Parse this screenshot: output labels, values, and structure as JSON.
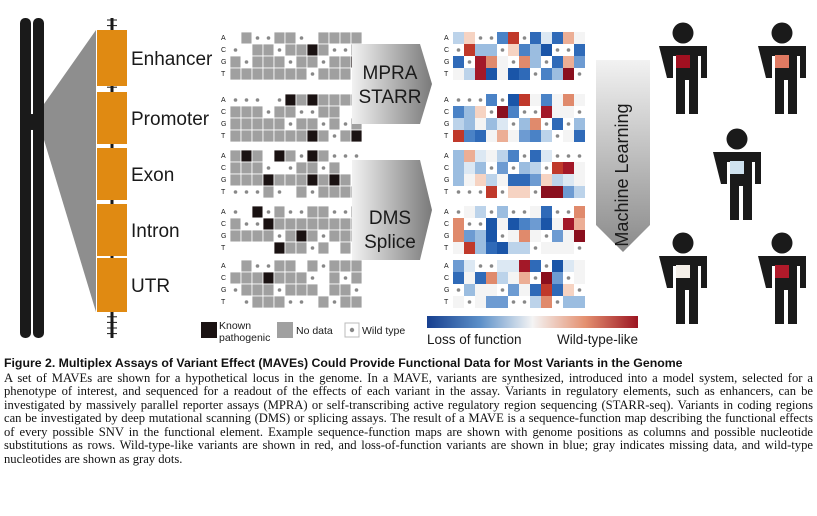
{
  "regions": [
    "Enhancer",
    "Promoter",
    "Exon",
    "Intron",
    "UTR"
  ],
  "nucleotides": [
    "A",
    "C",
    "G",
    "T"
  ],
  "arrows": {
    "top": [
      "MPRA",
      "STARR"
    ],
    "bottom": [
      "DMS",
      "Splice"
    ],
    "ml": "Machine Learning"
  },
  "legend": {
    "known_pathogenic": "Known\npathogenic",
    "no_data": "No data",
    "wild_type": "Wild type"
  },
  "colorbar": {
    "left": "Loss of function",
    "right": "Wild-type-like"
  },
  "colors": {
    "region_fill": "#e08a12",
    "chromosome": "#1a1a1a",
    "trapezoid": "#8a8a8a",
    "no_data": "#a0a0a0",
    "pathogenic": "#1a1212",
    "lof": "#1a55a8",
    "wt_like": "#a31828"
  },
  "people_chest": [
    "#a01020",
    "#e07a62",
    "#cfe2ef",
    "#f4efe8",
    "#b01a2a"
  ],
  "caption": {
    "title": "Figure 2.    Multiplex Assays of Variant Effect (MAVEs) Could Provide Functional Data for Most Variants in the Genome",
    "body": "A set of MAVEs are shown for a hypothetical locus in the genome. In a MAVE, variants are synthesized, introduced into a model system, selected for a phenotype of interest, and sequenced for a readout of the effects of each variant in the assay. Variants in regulatory elements, such as enhancers, can be investigated by massively parallel reporter assays (MPRA) or self-transcribing active regulatory region sequencing (STARR-seq). Variants in coding regions can be investigated by deep mutational scanning (DMS) or splicing assays. The result of a MAVE is a sequence-function map describing the functional effects of every possible SNV in the functional element. Example sequence-function maps are shown with genome positions as columns and possible nucleotide substitutions as rows. Wild-type-like variants are shown in red, and loss-of-function variants are shown in blue; gray indicates missing data, and wild-type nucleotides are shown as gray dots."
  }
}
